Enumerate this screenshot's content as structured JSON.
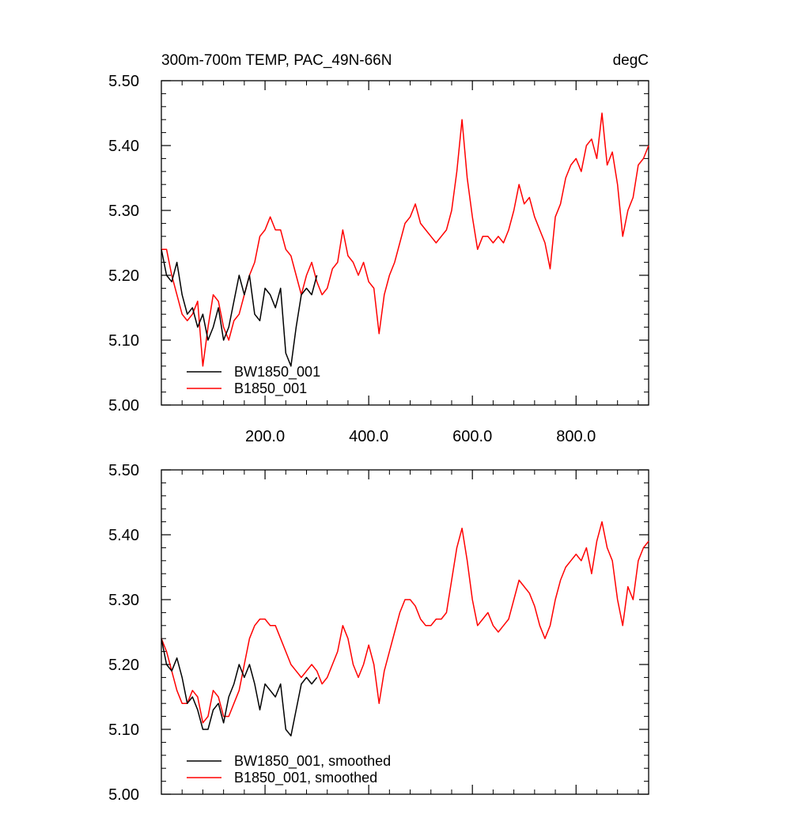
{
  "colors": {
    "black_series": "#000000",
    "red_series": "#ff0000",
    "frame": "#000000",
    "background": "#ffffff"
  },
  "chart_data": [
    {
      "type": "line",
      "panel": "top",
      "title": "300m-700m TEMP, PAC_49N-66N",
      "units": "degC",
      "xlim": [
        0,
        940
      ],
      "ylim": [
        5.0,
        5.5
      ],
      "x_tick_labels": [
        "200.0",
        "400.0",
        "600.0",
        "800.0"
      ],
      "x_tick_values": [
        200,
        400,
        600,
        800
      ],
      "y_tick_labels": [
        "5.00",
        "5.10",
        "5.20",
        "5.30",
        "5.40",
        "5.50"
      ],
      "y_tick_values": [
        5.0,
        5.1,
        5.2,
        5.3,
        5.4,
        5.5
      ],
      "legend_position": "lower-left",
      "series": [
        {
          "name": "BW1850_001",
          "color": "#000000",
          "x": [
            0,
            10,
            20,
            30,
            40,
            50,
            60,
            70,
            80,
            90,
            100,
            110,
            120,
            130,
            140,
            150,
            160,
            170,
            180,
            190,
            200,
            210,
            220,
            230,
            240,
            250,
            260,
            270,
            280,
            290,
            300
          ],
          "y": [
            5.24,
            5.2,
            5.19,
            5.22,
            5.17,
            5.14,
            5.15,
            5.12,
            5.14,
            5.1,
            5.12,
            5.15,
            5.1,
            5.12,
            5.16,
            5.2,
            5.17,
            5.2,
            5.14,
            5.13,
            5.18,
            5.17,
            5.15,
            5.18,
            5.08,
            5.06,
            5.12,
            5.17,
            5.18,
            5.17,
            5.2
          ]
        },
        {
          "name": "B1850_001",
          "color": "#ff0000",
          "x": [
            0,
            10,
            20,
            30,
            40,
            50,
            60,
            70,
            80,
            90,
            100,
            110,
            120,
            130,
            140,
            150,
            160,
            170,
            180,
            190,
            200,
            210,
            220,
            230,
            240,
            250,
            260,
            270,
            280,
            290,
            300,
            310,
            320,
            330,
            340,
            350,
            360,
            370,
            380,
            390,
            400,
            410,
            420,
            430,
            440,
            450,
            460,
            470,
            480,
            490,
            500,
            510,
            520,
            530,
            540,
            550,
            560,
            570,
            580,
            590,
            600,
            610,
            620,
            630,
            640,
            650,
            660,
            670,
            680,
            690,
            700,
            710,
            720,
            730,
            740,
            750,
            760,
            770,
            780,
            790,
            800,
            810,
            820,
            830,
            840,
            850,
            860,
            870,
            880,
            890,
            900,
            910,
            920,
            930,
            940
          ],
          "y": [
            5.24,
            5.24,
            5.2,
            5.17,
            5.14,
            5.13,
            5.14,
            5.16,
            5.06,
            5.12,
            5.17,
            5.16,
            5.12,
            5.1,
            5.13,
            5.14,
            5.17,
            5.2,
            5.22,
            5.26,
            5.27,
            5.29,
            5.27,
            5.27,
            5.24,
            5.23,
            5.2,
            5.17,
            5.2,
            5.22,
            5.19,
            5.17,
            5.18,
            5.21,
            5.22,
            5.27,
            5.23,
            5.22,
            5.2,
            5.22,
            5.19,
            5.18,
            5.11,
            5.17,
            5.2,
            5.22,
            5.25,
            5.28,
            5.29,
            5.31,
            5.28,
            5.27,
            5.26,
            5.25,
            5.26,
            5.27,
            5.3,
            5.36,
            5.44,
            5.35,
            5.29,
            5.24,
            5.26,
            5.26,
            5.25,
            5.26,
            5.25,
            5.27,
            5.3,
            5.34,
            5.31,
            5.32,
            5.29,
            5.27,
            5.25,
            5.21,
            5.29,
            5.31,
            5.35,
            5.37,
            5.38,
            5.36,
            5.4,
            5.41,
            5.38,
            5.45,
            5.37,
            5.39,
            5.34,
            5.26,
            5.3,
            5.32,
            5.37,
            5.38,
            5.4
          ]
        }
      ]
    },
    {
      "type": "line",
      "panel": "bottom",
      "xlim": [
        0,
        940
      ],
      "ylim": [
        5.0,
        5.5
      ],
      "y_tick_labels": [
        "5.00",
        "5.10",
        "5.20",
        "5.30",
        "5.40",
        "5.50"
      ],
      "y_tick_values": [
        5.0,
        5.1,
        5.2,
        5.3,
        5.4,
        5.5
      ],
      "x_tick_values": [
        200,
        400,
        600,
        800
      ],
      "legend_position": "lower-left",
      "series": [
        {
          "name": "BW1850_001, smoothed",
          "color": "#000000",
          "x": [
            0,
            10,
            20,
            30,
            40,
            50,
            60,
            70,
            80,
            90,
            100,
            110,
            120,
            130,
            140,
            150,
            160,
            170,
            180,
            190,
            200,
            210,
            220,
            230,
            240,
            250,
            260,
            270,
            280,
            290,
            300
          ],
          "y": [
            5.24,
            5.2,
            5.19,
            5.21,
            5.18,
            5.14,
            5.15,
            5.13,
            5.1,
            5.1,
            5.13,
            5.14,
            5.11,
            5.15,
            5.17,
            5.2,
            5.18,
            5.2,
            5.17,
            5.13,
            5.17,
            5.16,
            5.15,
            5.17,
            5.1,
            5.09,
            5.13,
            5.17,
            5.18,
            5.17,
            5.18
          ]
        },
        {
          "name": "B1850_001, smoothed",
          "color": "#ff0000",
          "x": [
            0,
            10,
            20,
            30,
            40,
            50,
            60,
            70,
            80,
            90,
            100,
            110,
            120,
            130,
            140,
            150,
            160,
            170,
            180,
            190,
            200,
            210,
            220,
            230,
            240,
            250,
            260,
            270,
            280,
            290,
            300,
            310,
            320,
            330,
            340,
            350,
            360,
            370,
            380,
            390,
            400,
            410,
            420,
            430,
            440,
            450,
            460,
            470,
            480,
            490,
            500,
            510,
            520,
            530,
            540,
            550,
            560,
            570,
            580,
            590,
            600,
            610,
            620,
            630,
            640,
            650,
            660,
            670,
            680,
            690,
            700,
            710,
            720,
            730,
            740,
            750,
            760,
            770,
            780,
            790,
            800,
            810,
            820,
            830,
            840,
            850,
            860,
            870,
            880,
            890,
            900,
            910,
            920,
            930,
            940
          ],
          "y": [
            5.24,
            5.22,
            5.19,
            5.16,
            5.14,
            5.14,
            5.16,
            5.15,
            5.11,
            5.12,
            5.16,
            5.15,
            5.12,
            5.12,
            5.14,
            5.16,
            5.2,
            5.24,
            5.26,
            5.27,
            5.27,
            5.26,
            5.26,
            5.24,
            5.22,
            5.2,
            5.19,
            5.18,
            5.19,
            5.2,
            5.19,
            5.17,
            5.18,
            5.2,
            5.22,
            5.26,
            5.24,
            5.2,
            5.18,
            5.2,
            5.23,
            5.2,
            5.14,
            5.19,
            5.22,
            5.25,
            5.28,
            5.3,
            5.3,
            5.29,
            5.27,
            5.26,
            5.26,
            5.27,
            5.27,
            5.28,
            5.33,
            5.38,
            5.41,
            5.36,
            5.3,
            5.26,
            5.27,
            5.28,
            5.26,
            5.25,
            5.26,
            5.27,
            5.3,
            5.33,
            5.32,
            5.31,
            5.29,
            5.26,
            5.24,
            5.26,
            5.3,
            5.33,
            5.35,
            5.36,
            5.37,
            5.36,
            5.38,
            5.34,
            5.39,
            5.42,
            5.38,
            5.36,
            5.3,
            5.26,
            5.32,
            5.3,
            5.36,
            5.38,
            5.39
          ]
        }
      ]
    }
  ]
}
